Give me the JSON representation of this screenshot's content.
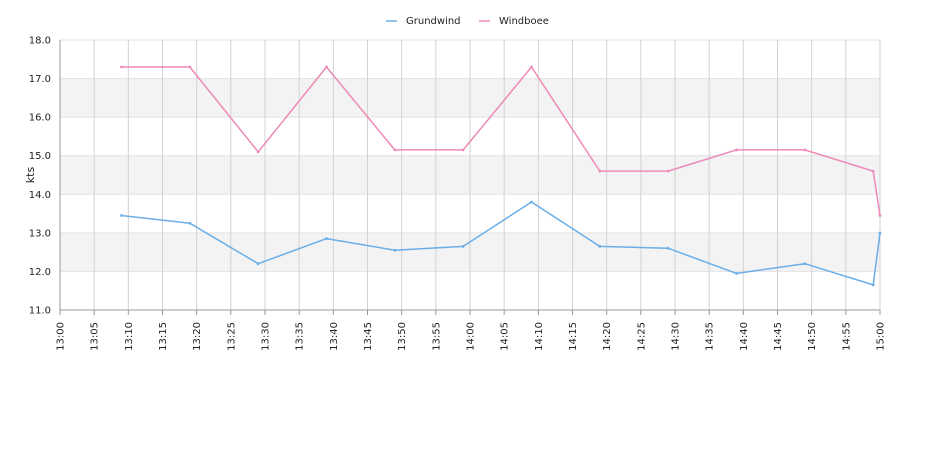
{
  "chart_data": {
    "type": "line",
    "title": "",
    "xlabel": "",
    "ylabel": "kts",
    "x_ticks": [
      "13:00",
      "13:05",
      "13:10",
      "13:15",
      "13:20",
      "13:25",
      "13:30",
      "13:35",
      "13:40",
      "13:45",
      "13:50",
      "13:55",
      "14:00",
      "14:05",
      "14:10",
      "14:15",
      "14:20",
      "14:25",
      "14:30",
      "14:35",
      "14:40",
      "14:45",
      "14:50",
      "14:55",
      "15:00"
    ],
    "xlim": [
      "13:00",
      "15:00"
    ],
    "y_ticks": [
      "11.0",
      "12.0",
      "13.0",
      "14.0",
      "15.0",
      "16.0",
      "17.0",
      "18.0"
    ],
    "ylim": [
      11.0,
      18.0
    ],
    "grid": true,
    "alternating_bands": true,
    "legend_position": "top-center",
    "series": [
      {
        "name": "Grundwind",
        "color": "#6aaee8",
        "points": [
          [
            "13:09",
            13.45
          ],
          [
            "13:19",
            13.25
          ],
          [
            "13:29",
            12.2
          ],
          [
            "13:39",
            12.85
          ],
          [
            "13:49",
            12.55
          ],
          [
            "13:59",
            12.65
          ],
          [
            "14:09",
            13.8
          ],
          [
            "14:19",
            12.65
          ],
          [
            "14:29",
            12.6
          ],
          [
            "14:39",
            11.95
          ],
          [
            "14:49",
            12.2
          ],
          [
            "14:59",
            11.65
          ],
          [
            "15:00",
            13.0
          ]
        ]
      },
      {
        "name": "Windboee",
        "color": "#ee8ab8",
        "points": [
          [
            "13:09",
            17.3
          ],
          [
            "13:19",
            17.3
          ],
          [
            "13:29",
            15.1
          ],
          [
            "13:39",
            17.3
          ],
          [
            "13:49",
            15.15
          ],
          [
            "13:59",
            15.15
          ],
          [
            "14:09",
            17.3
          ],
          [
            "14:19",
            14.6
          ],
          [
            "14:29",
            14.6
          ],
          [
            "14:39",
            15.15
          ],
          [
            "14:49",
            15.15
          ],
          [
            "14:59",
            14.6
          ],
          [
            "15:00",
            13.45
          ]
        ]
      }
    ]
  }
}
